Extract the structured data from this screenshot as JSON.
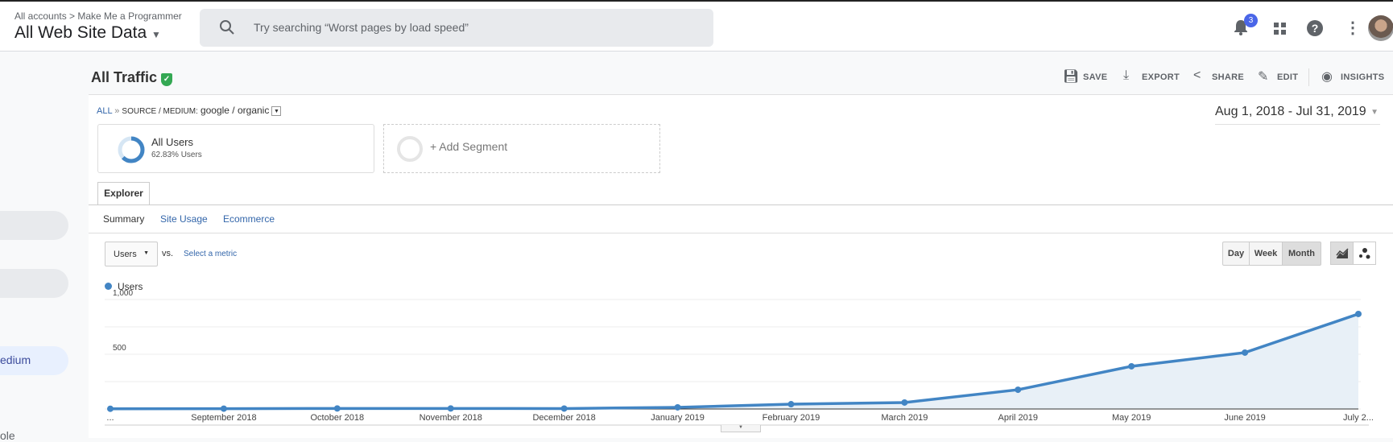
{
  "header": {
    "breadcrumb": "All accounts > Make Me a Programmer",
    "property": "All Web Site Data",
    "search_placeholder": "Try searching “Worst pages by load speed”",
    "notification_count": "3"
  },
  "sidebar": {
    "items": [
      "",
      "",
      "edium",
      "ole"
    ]
  },
  "report": {
    "title": "All Traffic",
    "toolbar": {
      "save": "SAVE",
      "export": "EXPORT",
      "share": "SHARE",
      "edit": "EDIT",
      "insights": "INSIGHTS"
    }
  },
  "filter": {
    "all": "ALL",
    "sep": "»",
    "dimension": "SOURCE / MEDIUM:",
    "value": "google / organic"
  },
  "date_range": "Aug 1, 2018 - Jul 31, 2019",
  "segments": [
    {
      "name": "All Users",
      "detail": "62.83% Users"
    },
    {
      "name": "+ Add Segment"
    }
  ],
  "tabs": {
    "explorer": "Explorer",
    "subtabs": [
      "Summary",
      "Site Usage",
      "Ecommerce"
    ],
    "active_subtab": "Summary"
  },
  "controls": {
    "metric": "Users",
    "vs": "vs.",
    "select_metric": "Select a metric",
    "granularity": [
      "Day",
      "Week",
      "Month"
    ],
    "active_granularity": "Month"
  },
  "colors": {
    "series": "#4285c4",
    "fill": "#e8f0f7",
    "accent": "#3366aa",
    "verified": "#34a853"
  },
  "chart_data": {
    "type": "area",
    "legend": "Users",
    "x": [
      "...",
      "September 2018",
      "October 2018",
      "November 2018",
      "December 2018",
      "January 2019",
      "February 2019",
      "March 2019",
      "April 2019",
      "May 2019",
      "June 2019",
      "July 2..."
    ],
    "series": [
      {
        "name": "Users",
        "values": [
          2,
          3,
          5,
          5,
          4,
          15,
          44,
          59,
          176,
          390,
          515,
          868
        ]
      }
    ],
    "yticks": [
      "500",
      "1,000"
    ],
    "ylim": [
      0,
      1000
    ],
    "grid": true,
    "legend_position": "top-left"
  }
}
